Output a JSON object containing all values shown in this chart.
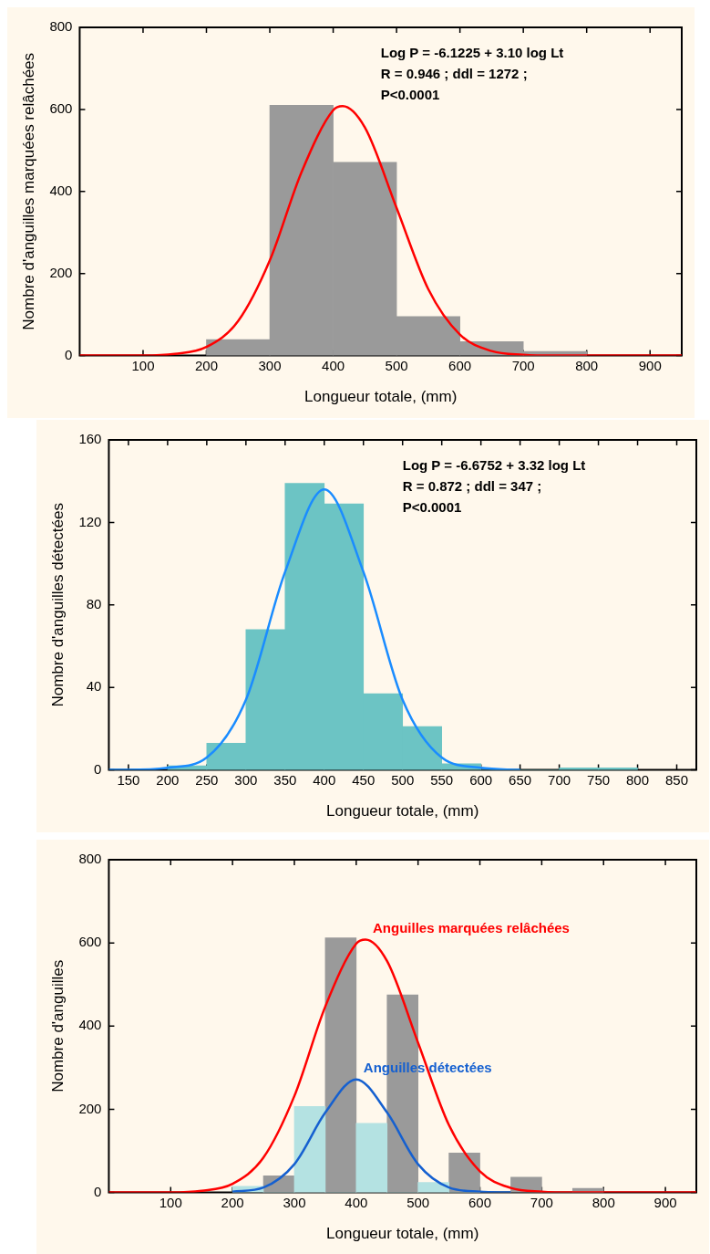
{
  "chart_data": [
    {
      "type": "histogram",
      "ylabel": "Nombre d'anguilles marquées relâchées",
      "xlabel": "Longueur totale, (mm)",
      "xlim": [
        0,
        950
      ],
      "xticks": [
        100,
        200,
        300,
        400,
        500,
        600,
        700,
        800,
        900
      ],
      "ylim": [
        0,
        800
      ],
      "yticks": [
        0,
        200,
        400,
        600,
        800
      ],
      "grid": false,
      "marker": "none",
      "annotations": [
        "Log P = -6.1225 + 3.10 log Lt",
        "R = 0.946 ; ddl = 1272 ;",
        "P<0.0001"
      ],
      "series": [
        {
          "color": "#9a9a9a",
          "bins": [
            200,
            300,
            400,
            500,
            600,
            700,
            800
          ],
          "values": [
            39,
            610,
            471,
            95,
            34,
            10
          ]
        },
        {
          "type": "line",
          "color": "#ff0000",
          "x": [
            0,
            50,
            100,
            150,
            200,
            250,
            300,
            350,
            400,
            415,
            450,
            500,
            550,
            600,
            650,
            700,
            750,
            800,
            850,
            900,
            950
          ],
          "values": [
            0,
            0,
            0,
            4,
            21,
            84,
            232,
            447,
            598,
            608,
            556,
            360,
            162,
            51,
            11,
            2,
            0,
            0,
            0,
            0,
            0
          ]
        }
      ]
    },
    {
      "type": "histogram",
      "ylabel": "Nombre d'anguilles détectées",
      "xlabel": "Longueur totale, (mm)",
      "xlim": [
        125,
        875
      ],
      "xticks": [
        150,
        200,
        250,
        300,
        350,
        400,
        450,
        500,
        550,
        600,
        650,
        700,
        750,
        800,
        850
      ],
      "ylim": [
        0,
        160
      ],
      "yticks": [
        0,
        40,
        80,
        120,
        160
      ],
      "grid": false,
      "marker": "none",
      "annotations": [
        "Log P = -6.6752 + 3.32 log Lt",
        "R = 0.872 ; ddl = 347 ;",
        "P<0.0001"
      ],
      "series": [
        {
          "color": "#6cc4c4",
          "bins": [
            200,
            250,
            300,
            350,
            400,
            450,
            500,
            550,
            600,
            650,
            700,
            750,
            800
          ],
          "values": [
            2,
            13,
            68,
            139,
            129,
            37,
            21,
            3,
            0,
            0,
            1,
            1
          ]
        },
        {
          "type": "line",
          "color": "#1a8cff",
          "x": [
            125,
            150,
            200,
            250,
            300,
            350,
            400,
            450,
            500,
            550,
            600,
            650
          ],
          "values": [
            0,
            0,
            1,
            6,
            34,
            96,
            136,
            96,
            34,
            6,
            1,
            0
          ]
        }
      ]
    },
    {
      "type": "histogram",
      "ylabel": "Nombre d'anguilles",
      "xlabel": "Longueur totale, (mm)",
      "xlim": [
        0,
        950
      ],
      "xticks": [
        100,
        200,
        300,
        400,
        500,
        600,
        700,
        800,
        900
      ],
      "ylim": [
        0,
        800
      ],
      "yticks": [
        0,
        200,
        400,
        600,
        800
      ],
      "grid": false,
      "marker": "none",
      "series": [
        {
          "color": "#b4e2e2",
          "bins": [
            200,
            250,
            300,
            350,
            400,
            450,
            500,
            550,
            600
          ],
          "values": [
            15,
            0,
            207,
            0,
            166,
            0,
            24,
            0
          ]
        },
        {
          "color": "#9a9a9a",
          "bins": [
            250,
            300,
            350,
            400,
            450,
            500,
            550,
            600,
            650,
            700,
            750,
            800
          ],
          "values": [
            40,
            0,
            612,
            0,
            475,
            0,
            95,
            0,
            37,
            0,
            10
          ]
        },
        {
          "type": "line",
          "name": "Anguilles marquées relâchées",
          "color": "#ff0000",
          "x": [
            0,
            50,
            100,
            150,
            200,
            250,
            300,
            350,
            400,
            415,
            450,
            500,
            550,
            600,
            650,
            700,
            750,
            800,
            850,
            900,
            950
          ],
          "values": [
            0,
            0,
            0,
            4,
            21,
            84,
            232,
            447,
            598,
            608,
            556,
            360,
            162,
            51,
            11,
            2,
            0,
            0,
            0,
            0,
            0
          ]
        },
        {
          "type": "line",
          "name": "Anguilles détectées",
          "color": "#1560d0",
          "x": [
            200,
            250,
            300,
            350,
            400,
            450,
            500,
            550,
            600,
            650
          ],
          "values": [
            2,
            12,
            68,
            192,
            272,
            192,
            68,
            12,
            2,
            0
          ]
        }
      ]
    }
  ]
}
